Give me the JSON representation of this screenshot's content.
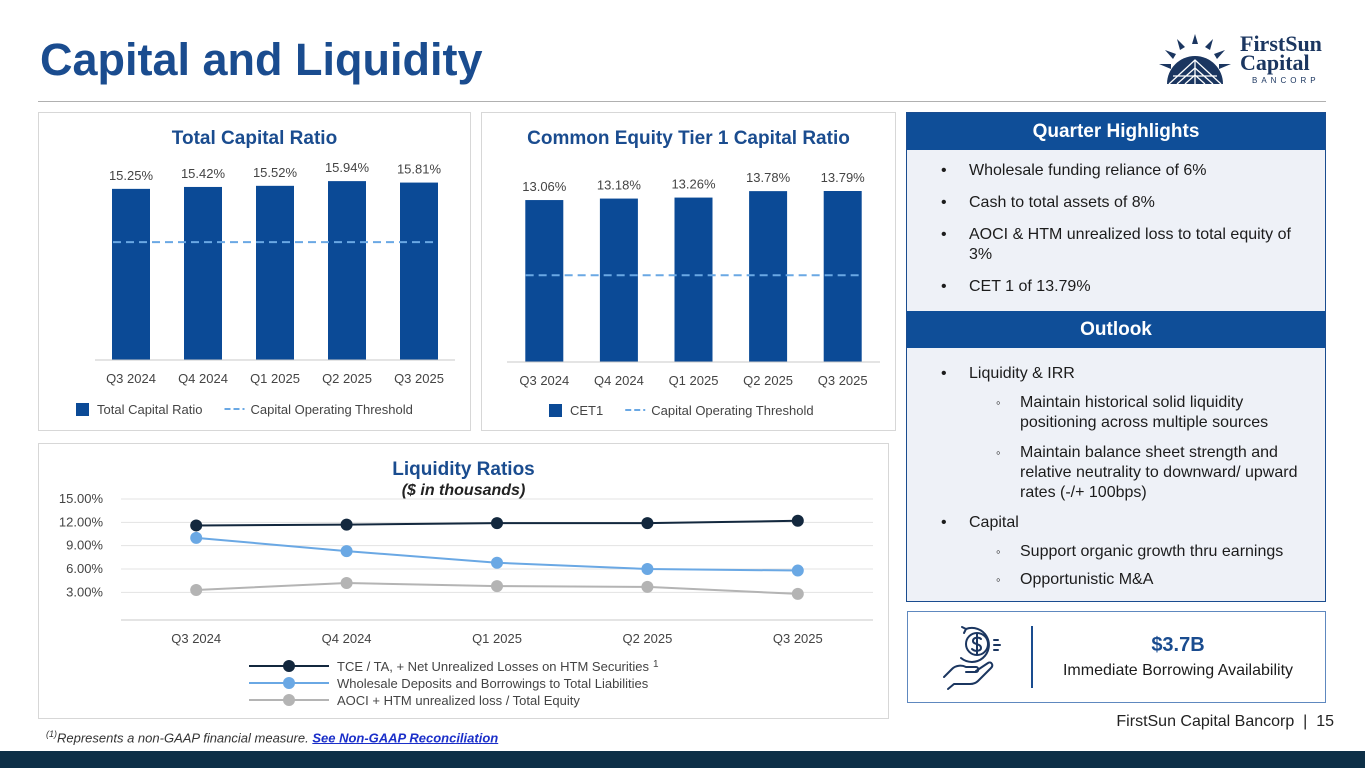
{
  "page": {
    "title": "Capital and Liquidity",
    "logo": {
      "line1": "FirstSun",
      "line2": "Capital",
      "line3": "BANCORP"
    },
    "footer": {
      "company": "FirstSun Capital Bancorp",
      "separator": "|",
      "page_number": "15"
    },
    "footnote": {
      "sup": "(1)",
      "text": "Represents a non-GAAP financial measure. ",
      "link": "See Non-GAAP Reconciliation"
    }
  },
  "highlights": {
    "header": "Quarter Highlights",
    "items": [
      "Wholesale funding reliance of 6%",
      "Cash to total assets of 8%",
      "AOCI & HTM unrealized loss to total equity of 3%",
      "CET 1 of 13.79%"
    ]
  },
  "outlook": {
    "header": "Outlook",
    "liquidity": "Liquidity & IRR",
    "liquidity_subs": [
      "Maintain historical solid liquidity positioning across multiple sources",
      "Maintain balance sheet strength and relative neutrality to downward/ upward rates (-/+ 100bps)"
    ],
    "capital": "Capital",
    "capital_subs": [
      "Support organic growth thru earnings",
      "Opportunistic M&A"
    ]
  },
  "borrowing": {
    "value": "$3.7B",
    "label": "Immediate Borrowing Availability",
    "icon": "hand-dollar-icon"
  },
  "colors": {
    "navy": "#0b4a96",
    "title_blue": "#1a4c8f",
    "light_blue": "#6aa8e4",
    "dark_navy": "#13283e",
    "gray": "#b4b4b4"
  },
  "chart_data": [
    {
      "type": "bar",
      "title": "Total Capital Ratio",
      "categories": [
        "Q3 2024",
        "Q4 2024",
        "Q1 2025",
        "Q2 2025",
        "Q3 2025"
      ],
      "series": [
        {
          "name": "Total Capital Ratio",
          "values": [
            15.25,
            15.42,
            15.52,
            15.94,
            15.81
          ]
        }
      ],
      "data_labels": [
        "15.25%",
        "15.42%",
        "15.52%",
        "15.94%",
        "15.81%"
      ],
      "threshold": {
        "name": "Capital Operating Threshold",
        "value": 10.5
      },
      "ylim": [
        0,
        18
      ]
    },
    {
      "type": "bar",
      "title": "Common Equity Tier 1 Capital Ratio",
      "categories": [
        "Q3 2024",
        "Q4 2024",
        "Q1 2025",
        "Q2 2025",
        "Q3 2025"
      ],
      "series": [
        {
          "name": "CET1",
          "values": [
            13.06,
            13.18,
            13.26,
            13.78,
            13.79
          ]
        }
      ],
      "data_labels": [
        "13.06%",
        "13.18%",
        "13.26%",
        "13.78%",
        "13.79%"
      ],
      "threshold": {
        "name": "Capital Operating Threshold",
        "value": 7.0
      },
      "ylim": [
        0,
        15
      ]
    },
    {
      "type": "line",
      "title": "Liquidity Ratios",
      "subtitle": "($ in thousands)",
      "categories": [
        "Q3 2024",
        "Q4 2024",
        "Q1 2025",
        "Q2 2025",
        "Q3 2025"
      ],
      "yticks": [
        "3.00%",
        "6.00%",
        "9.00%",
        "12.00%",
        "15.00%"
      ],
      "ylim": [
        1.5,
        15
      ],
      "grid": true,
      "legend": "bottom",
      "series": [
        {
          "name": "TCE /  TA, + Net Unrealized Losses on HTM Securities",
          "sup": "1",
          "values": [
            11.6,
            11.7,
            11.9,
            11.9,
            12.2
          ]
        },
        {
          "name": "Wholesale Deposits and Borrowings to Total Liabilities",
          "values": [
            10.0,
            8.3,
            6.8,
            6.0,
            5.8
          ]
        },
        {
          "name": "AOCI + HTM unrealized loss / Total Equity",
          "values": [
            3.3,
            4.2,
            3.8,
            3.7,
            2.8
          ]
        }
      ]
    }
  ]
}
